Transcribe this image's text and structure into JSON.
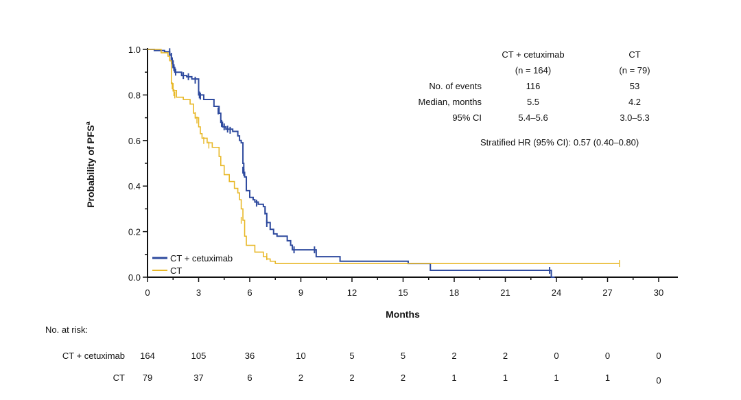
{
  "chart_data": {
    "type": "line",
    "subtype": "kaplan-meier",
    "xlabel": "Months",
    "ylabel": "Probability of PFS",
    "ylabel_sup": "a",
    "xlim": [
      0,
      30
    ],
    "ylim": [
      0,
      1.0
    ],
    "x_ticks": [
      "0",
      "3",
      "6",
      "9",
      "12",
      "15",
      "18",
      "21",
      "24",
      "27",
      "30"
    ],
    "y_ticks": [
      "0.0",
      "0.2",
      "0.4",
      "0.6",
      "0.8",
      "1.0"
    ],
    "legend": {
      "placement": "bottom-left",
      "entries": [
        "CT + cetuximab",
        "CT"
      ]
    },
    "series": [
      {
        "name": "CT + cetuximab",
        "color": "#2e4a9e",
        "steps": [
          [
            0,
            1.0
          ],
          [
            0.4,
            0.995
          ],
          [
            1.0,
            0.99
          ],
          [
            1.3,
            0.975
          ],
          [
            1.4,
            0.95
          ],
          [
            1.5,
            0.92
          ],
          [
            1.6,
            0.9
          ],
          [
            2.0,
            0.885
          ],
          [
            2.3,
            0.88
          ],
          [
            2.6,
            0.87
          ],
          [
            3.0,
            0.8
          ],
          [
            3.3,
            0.78
          ],
          [
            3.9,
            0.75
          ],
          [
            4.2,
            0.72
          ],
          [
            4.3,
            0.68
          ],
          [
            4.4,
            0.66
          ],
          [
            4.6,
            0.65
          ],
          [
            5.0,
            0.64
          ],
          [
            5.3,
            0.62
          ],
          [
            5.4,
            0.6
          ],
          [
            5.5,
            0.59
          ],
          [
            5.6,
            0.5
          ],
          [
            5.65,
            0.46
          ],
          [
            5.7,
            0.44
          ],
          [
            5.8,
            0.38
          ],
          [
            6.0,
            0.35
          ],
          [
            6.2,
            0.34
          ],
          [
            6.3,
            0.33
          ],
          [
            6.5,
            0.32
          ],
          [
            6.8,
            0.31
          ],
          [
            6.9,
            0.28
          ],
          [
            7.0,
            0.24
          ],
          [
            7.2,
            0.21
          ],
          [
            7.4,
            0.19
          ],
          [
            7.6,
            0.18
          ],
          [
            8.2,
            0.16
          ],
          [
            8.4,
            0.14
          ],
          [
            8.5,
            0.12
          ],
          [
            9.9,
            0.09
          ],
          [
            11.3,
            0.07
          ],
          [
            15.3,
            0.06
          ],
          [
            16.6,
            0.03
          ],
          [
            23.7,
            0.0
          ]
        ],
        "end": 23.9,
        "censors": [
          [
            1.3,
            0.99
          ],
          [
            1.4,
            0.97
          ],
          [
            1.45,
            0.95
          ],
          [
            1.5,
            0.935
          ],
          [
            1.55,
            0.92
          ],
          [
            1.65,
            0.9
          ],
          [
            2.1,
            0.885
          ],
          [
            2.4,
            0.88
          ],
          [
            2.8,
            0.865
          ],
          [
            3.05,
            0.8
          ],
          [
            3.1,
            0.795
          ],
          [
            4.15,
            0.73
          ],
          [
            4.35,
            0.675
          ],
          [
            4.5,
            0.66
          ],
          [
            4.7,
            0.65
          ],
          [
            4.85,
            0.645
          ],
          [
            5.6,
            0.47
          ],
          [
            5.65,
            0.46
          ],
          [
            6.4,
            0.325
          ],
          [
            6.9,
            0.29
          ],
          [
            7.0,
            0.235
          ],
          [
            8.6,
            0.12
          ],
          [
            9.8,
            0.12
          ],
          [
            23.6,
            0.03
          ]
        ]
      },
      {
        "name": "CT",
        "color": "#e8b828",
        "steps": [
          [
            0,
            1.0
          ],
          [
            0.8,
            0.985
          ],
          [
            1.2,
            0.97
          ],
          [
            1.3,
            0.95
          ],
          [
            1.4,
            0.85
          ],
          [
            1.5,
            0.82
          ],
          [
            1.7,
            0.79
          ],
          [
            2.1,
            0.78
          ],
          [
            2.5,
            0.76
          ],
          [
            2.7,
            0.72
          ],
          [
            2.8,
            0.7
          ],
          [
            3.0,
            0.66
          ],
          [
            3.1,
            0.63
          ],
          [
            3.2,
            0.61
          ],
          [
            3.5,
            0.59
          ],
          [
            3.8,
            0.57
          ],
          [
            4.2,
            0.53
          ],
          [
            4.3,
            0.49
          ],
          [
            4.5,
            0.45
          ],
          [
            4.8,
            0.42
          ],
          [
            5.1,
            0.39
          ],
          [
            5.3,
            0.37
          ],
          [
            5.4,
            0.34
          ],
          [
            5.5,
            0.3
          ],
          [
            5.6,
            0.25
          ],
          [
            5.7,
            0.18
          ],
          [
            5.8,
            0.14
          ],
          [
            6.3,
            0.11
          ],
          [
            6.8,
            0.09
          ],
          [
            7.0,
            0.08
          ],
          [
            7.2,
            0.07
          ],
          [
            7.5,
            0.06
          ]
        ],
        "end": 27.7,
        "censors": [
          [
            1.45,
            0.84
          ],
          [
            1.5,
            0.83
          ],
          [
            1.55,
            0.81
          ],
          [
            1.6,
            0.8
          ],
          [
            2.8,
            0.71
          ],
          [
            2.9,
            0.69
          ],
          [
            3.3,
            0.6
          ],
          [
            3.6,
            0.58
          ],
          [
            5.5,
            0.25
          ],
          [
            7.0,
            0.09
          ],
          [
            27.7,
            0.06
          ]
        ]
      }
    ],
    "stats_table": {
      "columns": [
        "CT + cetuximab",
        "CT"
      ],
      "column_n": [
        "(n = 164)",
        "(n = 79)"
      ],
      "rows": [
        {
          "label": "No. of events",
          "values": [
            "116",
            "53"
          ]
        },
        {
          "label": "Median, months",
          "values": [
            "5.5",
            "4.2"
          ]
        },
        {
          "label": "95% CI",
          "values": [
            "5.4–5.6",
            "3.0–5.3"
          ]
        }
      ],
      "hr": "Stratified HR (95% CI): 0.57 (0.40–0.80)"
    },
    "at_risk": {
      "title": "No. at risk:",
      "rows": [
        {
          "label": "CT + cetuximab",
          "values": [
            "164",
            "105",
            "36",
            "10",
            "5",
            "5",
            "2",
            "2",
            "0",
            "0",
            "0"
          ]
        },
        {
          "label": "CT",
          "values": [
            "79",
            "37",
            "6",
            "2",
            "2",
            "2",
            "1",
            "1",
            "1",
            "1",
            "0"
          ]
        }
      ]
    }
  }
}
